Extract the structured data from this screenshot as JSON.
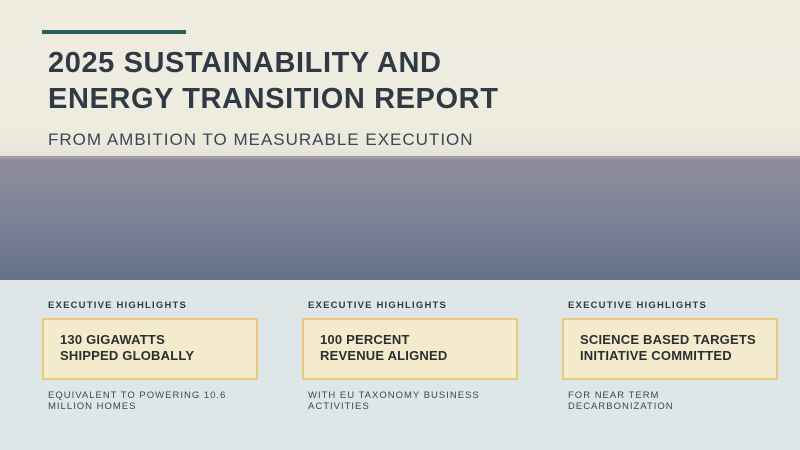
{
  "header": {
    "title": "2025 SUSTAINABILITY AND\nENERGY TRANSITION REPORT",
    "subtitle": "FROM AMBITION TO MEASURABLE EXECUTION"
  },
  "colors": {
    "accent": "#2e5e5a",
    "card_fill": "#f4ebcc",
    "card_border": "#e8c97e",
    "band": "#737b92"
  },
  "highlights": [
    {
      "label": "EXECUTIVE HIGHLIGHTS",
      "headline": "130 GIGAWATTS\nSHIPPED GLOBALLY",
      "description": "EQUIVALENT TO POWERING 10.6\nMILLION HOMES"
    },
    {
      "label": "EXECUTIVE HIGHLIGHTS",
      "headline": "100 PERCENT\nREVENUE ALIGNED",
      "description": "WITH EU TAXONOMY BUSINESS\nACTIVITIES"
    },
    {
      "label": "EXECUTIVE HIGHLIGHTS",
      "headline": "SCIENCE BASED TARGETS\nINITIATIVE COMMITTED",
      "description": "FOR NEAR TERM DECARBONIZATION"
    }
  ]
}
